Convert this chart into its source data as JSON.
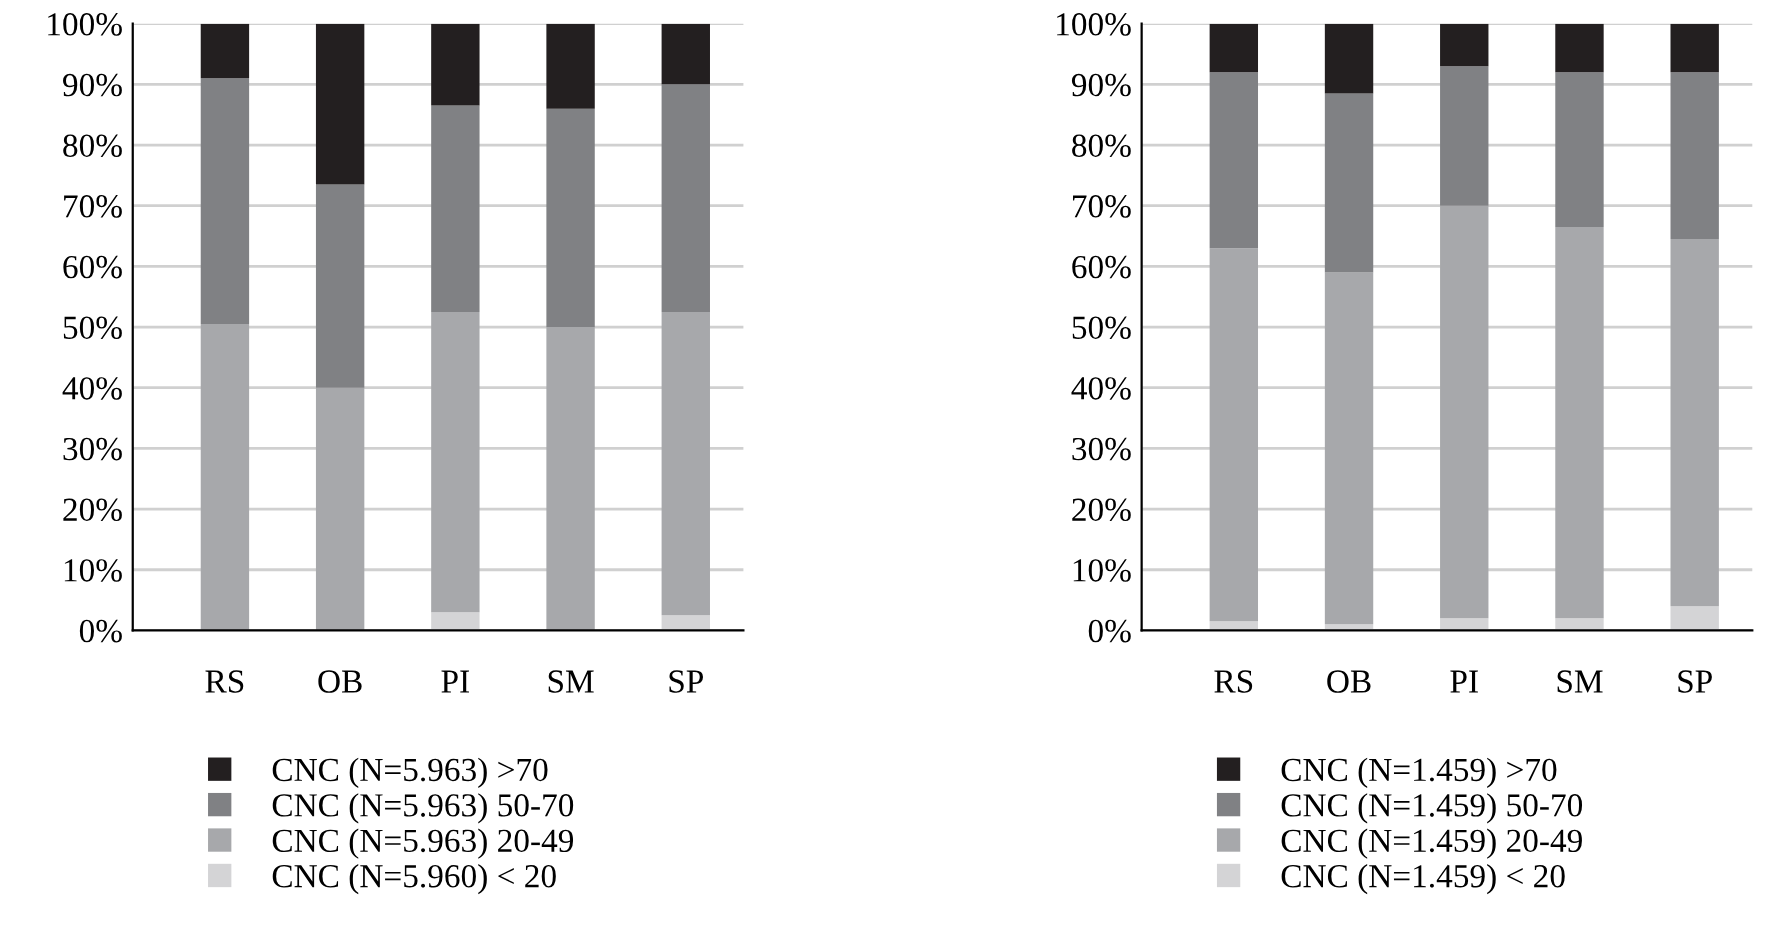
{
  "chart_data": [
    {
      "type": "bar",
      "stacked": true,
      "categories": [
        "RS",
        "OB",
        "PI",
        "SM",
        "SP"
      ],
      "ylim": [
        0,
        100
      ],
      "yticks": [
        {
          "value": 0,
          "label": "0%"
        },
        {
          "value": 10,
          "label": "10%"
        },
        {
          "value": 20,
          "label": "20%"
        },
        {
          "value": 30,
          "label": "30%"
        },
        {
          "value": 40,
          "label": "40%"
        },
        {
          "value": 50,
          "label": "50%"
        },
        {
          "value": 60,
          "label": "60%"
        },
        {
          "value": 70,
          "label": "70%"
        },
        {
          "value": 80,
          "label": "80%"
        },
        {
          "value": 90,
          "label": "90%"
        },
        {
          "value": 100,
          "label": "100%"
        }
      ],
      "grid": "y",
      "legend": "bottom",
      "series": [
        {
          "name": "CNC (N=5.960) < 20",
          "color": "#d4d4d6",
          "values": [
            0,
            0,
            3,
            0,
            2.5
          ]
        },
        {
          "name": "CNC (N=5.963) 20-49",
          "color": "#a7a8ab",
          "values": [
            50.5,
            40,
            49.5,
            50,
            50
          ]
        },
        {
          "name": "CNC (N=5.963) 50-70",
          "color": "#808184",
          "values": [
            40.5,
            33.5,
            34,
            36,
            37.5
          ]
        },
        {
          "name": "CNC (N=5.963) >70",
          "color": "#231f20",
          "values": [
            9,
            26.5,
            13.5,
            14,
            10
          ]
        }
      ]
    },
    {
      "type": "bar",
      "stacked": true,
      "categories": [
        "RS",
        "OB",
        "PI",
        "SM",
        "SP"
      ],
      "ylim": [
        0,
        100
      ],
      "yticks": [
        {
          "value": 0,
          "label": "0%"
        },
        {
          "value": 10,
          "label": "10%"
        },
        {
          "value": 20,
          "label": "20%"
        },
        {
          "value": 30,
          "label": "30%"
        },
        {
          "value": 40,
          "label": "40%"
        },
        {
          "value": 50,
          "label": "50%"
        },
        {
          "value": 60,
          "label": "60%"
        },
        {
          "value": 70,
          "label": "70%"
        },
        {
          "value": 80,
          "label": "80%"
        },
        {
          "value": 90,
          "label": "90%"
        },
        {
          "value": 100,
          "label": "100%"
        }
      ],
      "grid": "y",
      "legend": "bottom",
      "series": [
        {
          "name": "CNC (N=1.459) < 20",
          "color": "#d4d4d6",
          "values": [
            1.5,
            1,
            2,
            2,
            4
          ]
        },
        {
          "name": "CNC (N=1.459) 20-49",
          "color": "#a7a8ab",
          "values": [
            61.5,
            58,
            68,
            64.5,
            60.5
          ]
        },
        {
          "name": "CNC (N=1.459) 50-70",
          "color": "#808184",
          "values": [
            29,
            29.5,
            23,
            25.5,
            27.5
          ]
        },
        {
          "name": "CNC (N=1.459) >70",
          "color": "#231f20",
          "values": [
            8,
            11.5,
            7,
            8,
            8
          ]
        }
      ]
    }
  ]
}
